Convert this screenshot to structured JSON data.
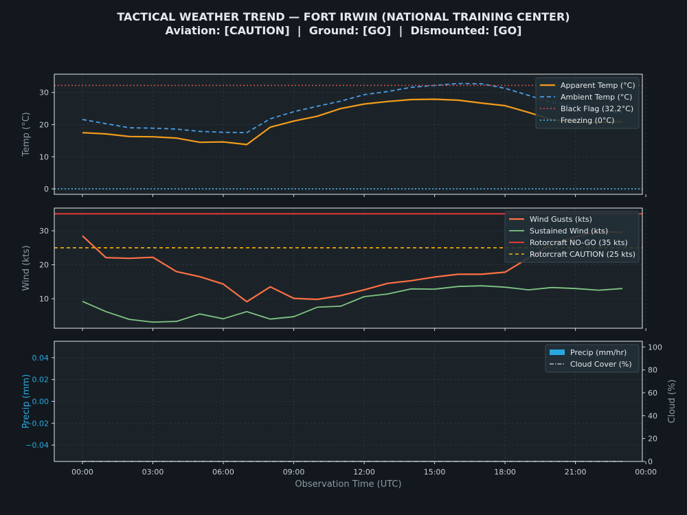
{
  "title": "TACTICAL WEATHER TREND — FORT IRWIN (NATIONAL TRAINING CENTER)",
  "subtitle": "Aviation: [CAUTION]  |  Ground: [GO]  |  Dismounted: [GO]",
  "colors": {
    "background": "#12181d",
    "panel": "#1b2329",
    "apparent": "#f59c1a",
    "ambient": "#4a9fe8",
    "black_flag": "#d9534f",
    "freezing": "#4fc3f7",
    "gusts": "#ff7043",
    "sustained": "#81c784",
    "nogo": "#e53935",
    "caution": "#ffb300",
    "precip": "#29a8e0",
    "cloud": "#bbbbbb"
  },
  "chart_data": [
    {
      "type": "line",
      "ylabel": "Temp (°C)",
      "xlim": [
        -1.2,
        23.85
      ],
      "ylim": [
        -1.7,
        35.7
      ],
      "yticks": [
        0,
        10,
        20,
        30
      ],
      "legend_position": "top-right",
      "grid": true,
      "x": [
        0,
        1,
        2,
        3,
        4,
        5,
        6,
        7,
        8,
        9,
        10,
        11,
        12,
        13,
        14,
        15,
        16,
        17,
        18,
        19,
        20,
        21,
        22,
        23
      ],
      "series": [
        {
          "name": "Apparent Temp (°C)",
          "values": [
            17.5,
            17.1,
            16.3,
            16.2,
            15.8,
            14.5,
            14.6,
            13.8,
            19.2,
            21.1,
            22.6,
            25.0,
            26.4,
            27.2,
            27.8,
            27.9,
            27.6,
            26.7,
            25.9,
            23.8,
            21.5,
            20.8,
            20.7,
            20.9
          ]
        },
        {
          "name": "Ambient Temp (°C)",
          "values": [
            21.6,
            20.3,
            19.0,
            18.9,
            18.6,
            17.9,
            17.6,
            17.5,
            21.8,
            24.0,
            25.7,
            27.3,
            29.3,
            30.3,
            31.6,
            32.2,
            32.8,
            32.7,
            31.3,
            29.1,
            26.9,
            25.7,
            24.3,
            23.6
          ]
        },
        {
          "name": "Black Flag (32.2°C)",
          "threshold": 32.2
        },
        {
          "name": "Freezing (0°C)",
          "threshold": 0
        }
      ]
    },
    {
      "type": "line",
      "ylabel": "Wind (kts)",
      "xlim": [
        -1.2,
        23.85
      ],
      "ylim": [
        1.3,
        36.7
      ],
      "yticks": [
        10,
        20,
        30
      ],
      "legend_position": "top-right",
      "grid": true,
      "x": [
        0,
        1,
        2,
        3,
        4,
        5,
        6,
        7,
        8,
        9,
        10,
        11,
        12,
        13,
        14,
        15,
        16,
        17,
        18,
        19,
        20,
        21,
        22,
        23
      ],
      "series": [
        {
          "name": "Wind Gusts (kts)",
          "values": [
            28.5,
            22.1,
            21.9,
            22.2,
            18.0,
            16.5,
            14.3,
            9.1,
            13.5,
            10.1,
            9.8,
            10.9,
            12.6,
            14.5,
            15.3,
            16.4,
            17.2,
            17.2,
            17.8,
            22.0,
            26.1,
            28.2,
            29.8,
            29.5
          ]
        },
        {
          "name": "Sustained Wind (kts)",
          "values": [
            9.2,
            6.2,
            3.9,
            3.1,
            3.3,
            5.5,
            4.1,
            6.2,
            4.0,
            4.7,
            7.5,
            7.8,
            10.6,
            11.4,
            12.9,
            12.8,
            13.6,
            13.8,
            13.4,
            12.6,
            13.3,
            13.0,
            12.5,
            13.0
          ]
        },
        {
          "name": "Rotorcraft NO-GO (35 kts)",
          "threshold": 35
        },
        {
          "name": "Rotorcraft CAUTION (25 kts)",
          "threshold": 25
        }
      ]
    },
    {
      "type": "bar",
      "xlabel": "Observation Time (UTC)",
      "ylabel": "Precip (mm)",
      "y2label": "Cloud (%)",
      "xlim": [
        -1.2,
        23.85
      ],
      "ylim": [
        -0.055,
        0.055
      ],
      "yticks": [
        -0.04,
        -0.02,
        0.0,
        0.02,
        0.04
      ],
      "yticklabels": [
        "−0.04",
        "−0.02",
        "0.00",
        "0.02",
        "0.04"
      ],
      "y2lim": [
        0,
        105
      ],
      "y2ticks": [
        0,
        20,
        40,
        60,
        80,
        100
      ],
      "xticks": [
        0,
        3,
        6,
        9,
        12,
        15,
        18,
        21,
        24
      ],
      "xticklabels": [
        "00:00",
        "03:00",
        "06:00",
        "09:00",
        "12:00",
        "15:00",
        "18:00",
        "21:00",
        "00:00"
      ],
      "legend_position": "top-right",
      "grid": true,
      "x": [
        0,
        1,
        2,
        3,
        4,
        5,
        6,
        7,
        8,
        9,
        10,
        11,
        12,
        13,
        14,
        15,
        16,
        17,
        18,
        19,
        20,
        21,
        22,
        23
      ],
      "series": [
        {
          "name": "Precip (mm/hr)",
          "values": [
            0,
            0,
            0,
            0,
            0,
            0,
            0,
            0,
            0,
            0,
            0,
            0,
            0,
            0,
            0,
            0,
            0,
            0,
            0,
            0,
            0,
            0,
            0,
            0
          ]
        },
        {
          "name": "Cloud Cover (%)",
          "axis": "right",
          "values": [
            0,
            0,
            0,
            0,
            0,
            0,
            0,
            0,
            0,
            0,
            0,
            0,
            0,
            0,
            0,
            0,
            0,
            0,
            0,
            0,
            0,
            0,
            0,
            0
          ]
        }
      ]
    }
  ]
}
